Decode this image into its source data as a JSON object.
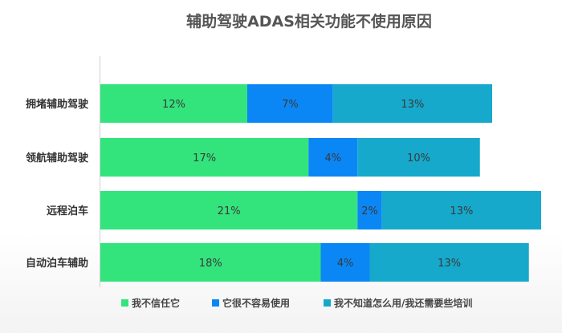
{
  "chart_data": {
    "type": "bar",
    "orientation": "horizontal",
    "stacked": true,
    "title": "辅助驾驶ADAS相关功能不使用原因",
    "categories": [
      "拥堵辅助驾驶",
      "领航辅助驾驶",
      "远程泊车",
      "自动泊车辅助"
    ],
    "series": [
      {
        "name": "我不信任它",
        "values": [
          12,
          17,
          21,
          18
        ],
        "labels": [
          "12%",
          "17%",
          "21%",
          "18%"
        ],
        "color": "#33e47c"
      },
      {
        "name": "它很不容易使用",
        "values": [
          7,
          4,
          2,
          4
        ],
        "labels": [
          "7%",
          "4%",
          "2%",
          "4%"
        ],
        "color": "#0a87f5"
      },
      {
        "name": "我不知道怎么用/我还需要些培训",
        "values": [
          13,
          10,
          13,
          13
        ],
        "labels": [
          "13%",
          "10%",
          "13%",
          "13%"
        ],
        "color": "#16a9cb"
      }
    ],
    "value_unit": "%",
    "legend_position": "bottom",
    "grid": false
  }
}
